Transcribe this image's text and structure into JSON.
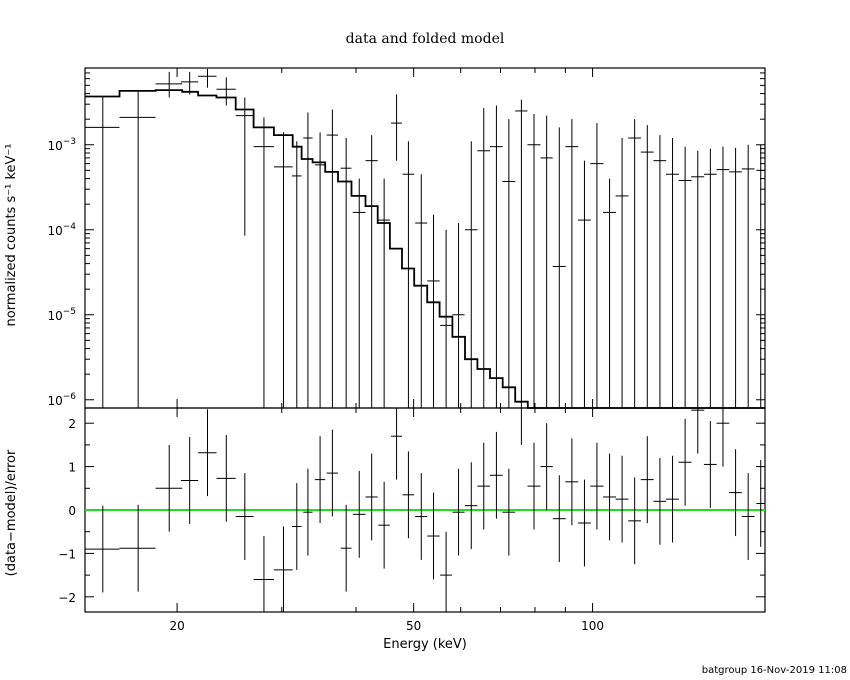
{
  "chart_data": {
    "type": "scatter",
    "title": "data and folded model",
    "footer": "batgroup 16-Nov-2019 11:08",
    "xlabel": "Energy (keV)",
    "xscale": "log",
    "xlim": [
      14,
      195
    ],
    "x_tick_labels": [
      {
        "value": 20,
        "label": "20"
      },
      {
        "value": 50,
        "label": "50"
      },
      {
        "value": 100,
        "label": "100"
      }
    ],
    "top_panel": {
      "ylabel": "normalized counts s⁻¹ keV⁻¹",
      "yscale": "log",
      "ylim": [
        8e-07,
        0.008
      ],
      "y_tick_labels": [
        {
          "value": 0.001,
          "mantissa": "10",
          "exp": "−3"
        },
        {
          "value": 0.0001,
          "mantissa": "10",
          "exp": "−4"
        },
        {
          "value": 1e-05,
          "mantissa": "10",
          "exp": "−5"
        },
        {
          "value": 1e-06,
          "mantissa": "10",
          "exp": "−6"
        }
      ],
      "data_points": [
        {
          "x": 15.0,
          "xerr": 1.0,
          "y": 0.0016,
          "ylo": 8e-07,
          "yhi": 0.0037
        },
        {
          "x": 17.2,
          "xerr": 1.2,
          "y": 0.0021,
          "ylo": 8e-07,
          "yhi": 0.0042
        },
        {
          "x": 19.4,
          "xerr": 1.0,
          "y": 0.0052,
          "ylo": 0.0036,
          "yhi": 0.0072
        },
        {
          "x": 21.0,
          "xerr": 0.7,
          "y": 0.0055,
          "ylo": 0.0039,
          "yhi": 0.0072
        },
        {
          "x": 22.5,
          "xerr": 0.8,
          "y": 0.0064,
          "ylo": 0.0047,
          "yhi": 0.0078
        },
        {
          "x": 24.2,
          "xerr": 0.9,
          "y": 0.0045,
          "ylo": 0.0029,
          "yhi": 0.0062
        },
        {
          "x": 26.0,
          "xerr": 0.9,
          "y": 0.0022,
          "ylo": 8.5e-05,
          "yhi": 0.0036
        },
        {
          "x": 28.0,
          "xerr": 1.1,
          "y": 0.00095,
          "ylo": 8e-07,
          "yhi": 0.0021
        },
        {
          "x": 30.2,
          "xerr": 1.1,
          "y": 0.00055,
          "ylo": 8e-07,
          "yhi": 0.0014
        },
        {
          "x": 31.8,
          "xerr": 0.6,
          "y": 0.00043,
          "ylo": 8e-07,
          "yhi": 0.0011
        },
        {
          "x": 33.2,
          "xerr": 0.6,
          "y": 0.0012,
          "ylo": 8e-07,
          "yhi": 0.0024
        },
        {
          "x": 34.8,
          "xerr": 0.7,
          "y": 0.00058,
          "ylo": 8e-07,
          "yhi": 0.0014
        },
        {
          "x": 36.5,
          "xerr": 0.8,
          "y": 0.0013,
          "ylo": 8e-07,
          "yhi": 0.0026
        },
        {
          "x": 38.5,
          "xerr": 0.8,
          "y": 0.00053,
          "ylo": 8e-07,
          "yhi": 0.0012
        },
        {
          "x": 40.5,
          "xerr": 1.0,
          "y": 0.00016,
          "ylo": 8e-07,
          "yhi": 0.0004
        },
        {
          "x": 42.5,
          "xerr": 1.0,
          "y": 0.00065,
          "ylo": 8e-07,
          "yhi": 0.0013
        },
        {
          "x": 44.6,
          "xerr": 1.0,
          "y": 0.00013,
          "ylo": 8e-07,
          "yhi": 0.0004
        },
        {
          "x": 46.8,
          "xerr": 1.0,
          "y": 0.0018,
          "ylo": 0.00065,
          "yhi": 0.0039
        },
        {
          "x": 49.0,
          "xerr": 1.1,
          "y": 0.00045,
          "ylo": 8e-07,
          "yhi": 0.0011
        },
        {
          "x": 51.5,
          "xerr": 1.2,
          "y": 0.00012,
          "ylo": 8e-07,
          "yhi": 0.00045
        },
        {
          "x": 54.0,
          "xerr": 1.3,
          "y": 2.5e-05,
          "ylo": 8e-07,
          "yhi": 0.00015
        },
        {
          "x": 56.7,
          "xerr": 1.3,
          "y": 7.5e-06,
          "ylo": 8e-07,
          "yhi": 0.0001
        },
        {
          "x": 59.5,
          "xerr": 1.4,
          "y": 1e-05,
          "ylo": 8e-07,
          "yhi": 0.00012
        },
        {
          "x": 62.5,
          "xerr": 1.5,
          "y": 0.0001,
          "ylo": 8e-07,
          "yhi": 0.0011
        },
        {
          "x": 65.6,
          "xerr": 1.6,
          "y": 0.00085,
          "ylo": 8e-07,
          "yhi": 0.0027
        },
        {
          "x": 68.9,
          "xerr": 1.7,
          "y": 0.00095,
          "ylo": 8e-07,
          "yhi": 0.0029
        },
        {
          "x": 72.3,
          "xerr": 1.8,
          "y": 0.00037,
          "ylo": 8e-07,
          "yhi": 0.002
        },
        {
          "x": 75.9,
          "xerr": 1.8,
          "y": 0.0025,
          "ylo": 8e-07,
          "yhi": 0.0034
        },
        {
          "x": 79.7,
          "xerr": 2.0,
          "y": 0.001,
          "ylo": 8e-07,
          "yhi": 0.0023
        },
        {
          "x": 83.7,
          "xerr": 2.0,
          "y": 0.0007,
          "ylo": 8e-07,
          "yhi": 0.0022
        },
        {
          "x": 87.9,
          "xerr": 2.2,
          "y": 3.7e-05,
          "ylo": 8e-07,
          "yhi": 0.0016
        },
        {
          "x": 92.3,
          "xerr": 2.3,
          "y": 0.00095,
          "ylo": 8e-07,
          "yhi": 0.002
        },
        {
          "x": 96.9,
          "xerr": 2.4,
          "y": 0.00013,
          "ylo": 8e-07,
          "yhi": 0.00065
        },
        {
          "x": 101.7,
          "xerr": 2.6,
          "y": 0.0006,
          "ylo": 8e-07,
          "yhi": 0.0018
        },
        {
          "x": 106.8,
          "xerr": 2.7,
          "y": 0.00016,
          "ylo": 8e-07,
          "yhi": 0.0004
        },
        {
          "x": 112.1,
          "xerr": 2.8,
          "y": 0.00025,
          "ylo": 8e-07,
          "yhi": 0.0012
        },
        {
          "x": 117.7,
          "xerr": 2.9,
          "y": 0.0012,
          "ylo": 8e-07,
          "yhi": 0.002
        },
        {
          "x": 123.6,
          "xerr": 3.1,
          "y": 0.00082,
          "ylo": 8e-07,
          "yhi": 0.0017
        },
        {
          "x": 129.8,
          "xerr": 3.2,
          "y": 0.00065,
          "ylo": 8e-07,
          "yhi": 0.0013
        },
        {
          "x": 136.3,
          "xerr": 3.4,
          "y": 0.00045,
          "ylo": 8e-07,
          "yhi": 0.0012
        },
        {
          "x": 143.1,
          "xerr": 3.6,
          "y": 0.00038,
          "ylo": 8e-07,
          "yhi": 0.00095
        },
        {
          "x": 150.3,
          "xerr": 3.8,
          "y": 0.00042,
          "ylo": 8e-07,
          "yhi": 0.00085
        },
        {
          "x": 157.8,
          "xerr": 3.9,
          "y": 0.00045,
          "ylo": 8e-07,
          "yhi": 0.0009
        },
        {
          "x": 165.7,
          "xerr": 4.1,
          "y": 0.00051,
          "ylo": 8e-07,
          "yhi": 0.00095
        },
        {
          "x": 174.0,
          "xerr": 4.3,
          "y": 0.00048,
          "ylo": 8e-07,
          "yhi": 0.00092
        },
        {
          "x": 182.7,
          "xerr": 4.5,
          "y": 0.00052,
          "ylo": 8e-07,
          "yhi": 0.001
        },
        {
          "x": 191.8,
          "xerr": 3.2,
          "y": 0.0005,
          "ylo": 8e-07,
          "yhi": 0.001
        }
      ],
      "model_step": {
        "edges": [
          14,
          16,
          18.4,
          20.4,
          21.7,
          23.3,
          25.1,
          26.9,
          29.1,
          31.3,
          32.4,
          33.8,
          35.5,
          37.3,
          39.3,
          41.5,
          43.5,
          45.6,
          47.8,
          50.1,
          52.7,
          55.3,
          58.1,
          61,
          64,
          67.2,
          70.6,
          74.1,
          77.8,
          81.7,
          85.8,
          90.1,
          94.6,
          99.3,
          104.3,
          109.5,
          115,
          120.7,
          126.7,
          133,
          139.7,
          146.7,
          154,
          161.7,
          169.8,
          178.3,
          187.2,
          195
        ],
        "values": [
          0.0037,
          0.0043,
          0.0044,
          0.0042,
          0.0038,
          0.0036,
          0.0026,
          0.0016,
          0.0013,
          0.00095,
          0.00068,
          0.00062,
          0.00048,
          0.00037,
          0.00025,
          0.00019,
          0.00012,
          6e-05,
          3.5e-05,
          2.2e-05,
          1.4e-05,
          9.5e-06,
          5.5e-06,
          3e-06,
          2.3e-06,
          1.8e-06,
          1.4e-06,
          9.5e-07,
          8e-07,
          8e-07,
          8e-07,
          8e-07,
          8e-07,
          8e-07,
          8e-07,
          8e-07,
          8e-07,
          8e-07,
          8e-07,
          8e-07,
          8e-07,
          8e-07,
          8e-07,
          8e-07,
          8e-07,
          8e-07,
          8e-07
        ]
      }
    },
    "bottom_panel": {
      "ylabel": "(data−model)/error",
      "yscale": "linear",
      "ylim": [
        -2.35,
        2.35
      ],
      "y_tick_labels": [
        {
          "value": 2,
          "label": "2"
        },
        {
          "value": 1,
          "label": "1"
        },
        {
          "value": 0,
          "label": "0"
        },
        {
          "value": -1,
          "label": "−1"
        },
        {
          "value": -2,
          "label": "−2"
        }
      ],
      "zero_line_color": "#22dd22",
      "residuals": [
        {
          "x": 15.0,
          "xerr": 1.0,
          "y": -0.9,
          "yerr": 1.0
        },
        {
          "x": 17.2,
          "xerr": 1.2,
          "y": -0.88,
          "yerr": 1.0
        },
        {
          "x": 19.4,
          "xerr": 1.0,
          "y": 0.5,
          "yerr": 1.0
        },
        {
          "x": 21.0,
          "xerr": 0.7,
          "y": 0.68,
          "yerr": 1.0
        },
        {
          "x": 22.5,
          "xerr": 0.8,
          "y": 1.32,
          "yerr": 1.0
        },
        {
          "x": 24.2,
          "xerr": 0.9,
          "y": 0.73,
          "yerr": 1.0
        },
        {
          "x": 26.0,
          "xerr": 0.9,
          "y": -0.15,
          "yerr": 1.0
        },
        {
          "x": 28.0,
          "xerr": 1.1,
          "y": -1.6,
          "yerr": 1.0
        },
        {
          "x": 30.2,
          "xerr": 1.1,
          "y": -1.38,
          "yerr": 1.0
        },
        {
          "x": 31.8,
          "xerr": 0.6,
          "y": -0.38,
          "yerr": 1.0
        },
        {
          "x": 33.2,
          "xerr": 0.6,
          "y": -0.05,
          "yerr": 1.0
        },
        {
          "x": 34.8,
          "xerr": 0.7,
          "y": 0.7,
          "yerr": 1.0
        },
        {
          "x": 36.5,
          "xerr": 0.8,
          "y": 0.85,
          "yerr": 1.0
        },
        {
          "x": 38.5,
          "xerr": 0.8,
          "y": -0.88,
          "yerr": 1.0
        },
        {
          "x": 40.5,
          "xerr": 1.0,
          "y": -0.1,
          "yerr": 1.0
        },
        {
          "x": 42.5,
          "xerr": 1.0,
          "y": 0.3,
          "yerr": 1.0
        },
        {
          "x": 44.6,
          "xerr": 1.0,
          "y": -0.35,
          "yerr": 1.0
        },
        {
          "x": 46.8,
          "xerr": 1.0,
          "y": 1.7,
          "yerr": 1.0
        },
        {
          "x": 49.0,
          "xerr": 1.1,
          "y": 0.35,
          "yerr": 1.0
        },
        {
          "x": 51.5,
          "xerr": 1.2,
          "y": -0.15,
          "yerr": 1.0
        },
        {
          "x": 54.0,
          "xerr": 1.3,
          "y": -0.6,
          "yerr": 1.0
        },
        {
          "x": 56.7,
          "xerr": 1.3,
          "y": -1.5,
          "yerr": 1.0
        },
        {
          "x": 59.5,
          "xerr": 1.4,
          "y": -0.05,
          "yerr": 1.0
        },
        {
          "x": 62.5,
          "xerr": 1.5,
          "y": 0.1,
          "yerr": 1.0
        },
        {
          "x": 65.6,
          "xerr": 1.6,
          "y": 0.55,
          "yerr": 1.0
        },
        {
          "x": 68.9,
          "xerr": 1.7,
          "y": 0.8,
          "yerr": 1.0
        },
        {
          "x": 72.3,
          "xerr": 1.8,
          "y": -0.05,
          "yerr": 1.0
        },
        {
          "x": 75.9,
          "xerr": 1.8,
          "y": 2.5,
          "yerr": 1.0
        },
        {
          "x": 79.7,
          "xerr": 2.0,
          "y": 0.55,
          "yerr": 1.0
        },
        {
          "x": 83.7,
          "xerr": 2.0,
          "y": 1.0,
          "yerr": 1.0
        },
        {
          "x": 87.9,
          "xerr": 2.2,
          "y": -0.2,
          "yerr": 1.0
        },
        {
          "x": 92.3,
          "xerr": 2.3,
          "y": 0.65,
          "yerr": 1.0
        },
        {
          "x": 96.9,
          "xerr": 2.4,
          "y": -0.3,
          "yerr": 1.0
        },
        {
          "x": 101.7,
          "xerr": 2.6,
          "y": 0.55,
          "yerr": 1.0
        },
        {
          "x": 106.8,
          "xerr": 2.7,
          "y": 0.3,
          "yerr": 1.0
        },
        {
          "x": 112.1,
          "xerr": 2.8,
          "y": 0.25,
          "yerr": 1.0
        },
        {
          "x": 117.7,
          "xerr": 2.9,
          "y": -0.25,
          "yerr": 1.0
        },
        {
          "x": 123.6,
          "xerr": 3.1,
          "y": 0.7,
          "yerr": 1.0
        },
        {
          "x": 129.8,
          "xerr": 3.2,
          "y": 0.2,
          "yerr": 1.0
        },
        {
          "x": 136.3,
          "xerr": 3.4,
          "y": 0.25,
          "yerr": 1.0
        },
        {
          "x": 143.1,
          "xerr": 3.6,
          "y": 1.1,
          "yerr": 1.0
        },
        {
          "x": 150.3,
          "xerr": 3.8,
          "y": 2.3,
          "yerr": 1.0
        },
        {
          "x": 157.8,
          "xerr": 3.9,
          "y": 1.05,
          "yerr": 1.0
        },
        {
          "x": 165.7,
          "xerr": 4.1,
          "y": 2.0,
          "yerr": 1.0
        },
        {
          "x": 174.0,
          "xerr": 4.3,
          "y": 0.4,
          "yerr": 1.0
        },
        {
          "x": 182.7,
          "xerr": 4.5,
          "y": -0.15,
          "yerr": 1.0
        },
        {
          "x": 191.8,
          "xerr": 3.2,
          "y": 0.15,
          "yerr": 1.0
        }
      ]
    }
  }
}
